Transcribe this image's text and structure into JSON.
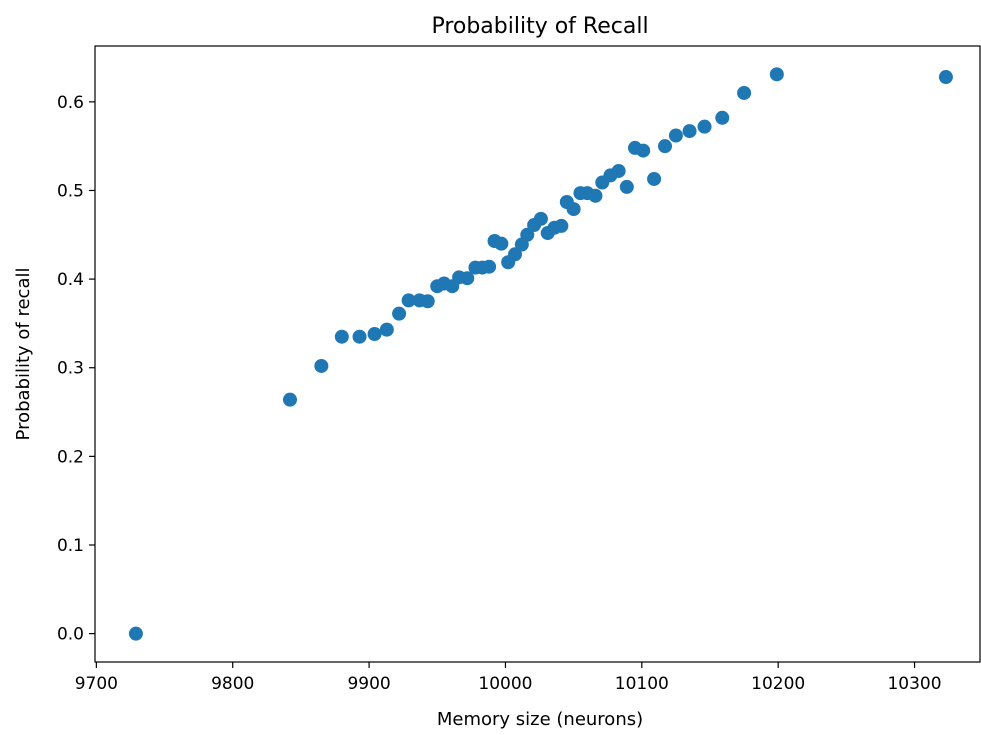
{
  "chart_data": {
    "type": "scatter",
    "title": "Probability of Recall",
    "xlabel": "Memory size (neurons)",
    "ylabel": "Probability of recall",
    "xlim": [
      9699,
      10348
    ],
    "ylim": [
      -0.032,
      0.663
    ],
    "xticks": [
      9700,
      9800,
      9900,
      10000,
      10100,
      10200,
      10300
    ],
    "yticks": [
      0.0,
      0.1,
      0.2,
      0.3,
      0.4,
      0.5,
      0.6
    ],
    "ytick_labels": [
      "0.0",
      "0.1",
      "0.2",
      "0.3",
      "0.4",
      "0.5",
      "0.6"
    ],
    "grid": false,
    "color": "#1f77b4",
    "x": [
      9729,
      9842,
      9865,
      9880,
      9893,
      9904,
      9913,
      9922,
      9929,
      9937,
      9943,
      9950,
      9955,
      9961,
      9966,
      9972,
      9978,
      9983,
      9988,
      9992,
      9997,
      10002,
      10007,
      10012,
      10016,
      10021,
      10026,
      10031,
      10036,
      10041,
      10045,
      10050,
      10055,
      10060,
      10066,
      10071,
      10077,
      10083,
      10089,
      10095,
      10101,
      10109,
      10117,
      10125,
      10135,
      10146,
      10159,
      10175,
      10199,
      10323
    ],
    "y": [
      0.0,
      0.264,
      0.302,
      0.335,
      0.335,
      0.338,
      0.343,
      0.361,
      0.376,
      0.376,
      0.375,
      0.392,
      0.395,
      0.392,
      0.402,
      0.401,
      0.413,
      0.413,
      0.414,
      0.443,
      0.44,
      0.419,
      0.428,
      0.439,
      0.45,
      0.461,
      0.468,
      0.452,
      0.458,
      0.46,
      0.487,
      0.479,
      0.497,
      0.497,
      0.494,
      0.509,
      0.517,
      0.522,
      0.504,
      0.548,
      0.545,
      0.513,
      0.55,
      0.562,
      0.567,
      0.572,
      0.582,
      0.61,
      0.631,
      0.628
    ]
  }
}
